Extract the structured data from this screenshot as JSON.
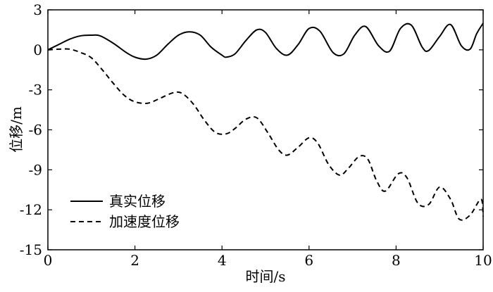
{
  "chart_data": {
    "type": "line",
    "title": "",
    "xlabel": "时间/s",
    "ylabel": "位移/m",
    "xlim": [
      0,
      10
    ],
    "ylim": [
      -15,
      3
    ],
    "xticks": [
      0,
      2,
      4,
      6,
      8,
      10
    ],
    "yticks": [
      3,
      0,
      -3,
      -6,
      -9,
      -12,
      -15
    ],
    "grid": false,
    "legend_position": "bottom-left",
    "series": [
      {
        "name": "真实位移",
        "line_style": "solid",
        "color": "#000000",
        "x": [
          0,
          0.25,
          0.5,
          0.75,
          1.0,
          1.2,
          1.5,
          1.8,
          2.0,
          2.25,
          2.5,
          2.75,
          3.0,
          3.25,
          3.5,
          3.75,
          4.0,
          4.1,
          4.3,
          4.55,
          4.8,
          5.0,
          5.25,
          5.5,
          5.75,
          6.0,
          6.25,
          6.55,
          6.8,
          7.05,
          7.3,
          7.6,
          7.85,
          8.1,
          8.35,
          8.6,
          8.75,
          9.0,
          9.25,
          9.5,
          9.7,
          9.85,
          10.0
        ],
        "y": [
          0.0,
          0.4,
          0.8,
          1.05,
          1.1,
          1.05,
          0.5,
          -0.2,
          -0.55,
          -0.7,
          -0.4,
          0.4,
          1.1,
          1.35,
          1.1,
          0.2,
          -0.4,
          -0.55,
          -0.3,
          0.7,
          1.5,
          1.3,
          0.1,
          -0.4,
          0.4,
          1.6,
          1.4,
          -0.2,
          -0.3,
          1.1,
          1.75,
          0.3,
          -0.1,
          1.6,
          1.85,
          0.2,
          -0.05,
          1.0,
          1.9,
          0.3,
          0.05,
          1.2,
          2.0
        ]
      },
      {
        "name": "加速度位移",
        "line_style": "dashed",
        "color": "#000000",
        "x": [
          0,
          0.25,
          0.5,
          0.75,
          1.0,
          1.25,
          1.5,
          1.75,
          2.0,
          2.3,
          2.6,
          2.9,
          3.1,
          3.35,
          3.6,
          3.85,
          4.1,
          4.3,
          4.55,
          4.8,
          5.05,
          5.3,
          5.5,
          5.75,
          6.0,
          6.2,
          6.45,
          6.7,
          6.9,
          7.15,
          7.35,
          7.55,
          7.75,
          8.05,
          8.25,
          8.5,
          8.75,
          9.0,
          9.25,
          9.45,
          9.7,
          9.95,
          10.0
        ],
        "y": [
          0.0,
          0.05,
          0.05,
          -0.2,
          -0.6,
          -1.5,
          -2.5,
          -3.4,
          -3.9,
          -4.0,
          -3.6,
          -3.2,
          -3.3,
          -4.1,
          -5.3,
          -6.2,
          -6.3,
          -5.9,
          -5.2,
          -5.1,
          -6.2,
          -7.5,
          -7.9,
          -7.3,
          -6.6,
          -7.0,
          -8.6,
          -9.4,
          -8.9,
          -8.0,
          -8.2,
          -9.8,
          -10.6,
          -9.3,
          -9.6,
          -11.5,
          -11.6,
          -10.3,
          -11.2,
          -12.7,
          -12.4,
          -11.2,
          -12.5
        ]
      }
    ]
  }
}
